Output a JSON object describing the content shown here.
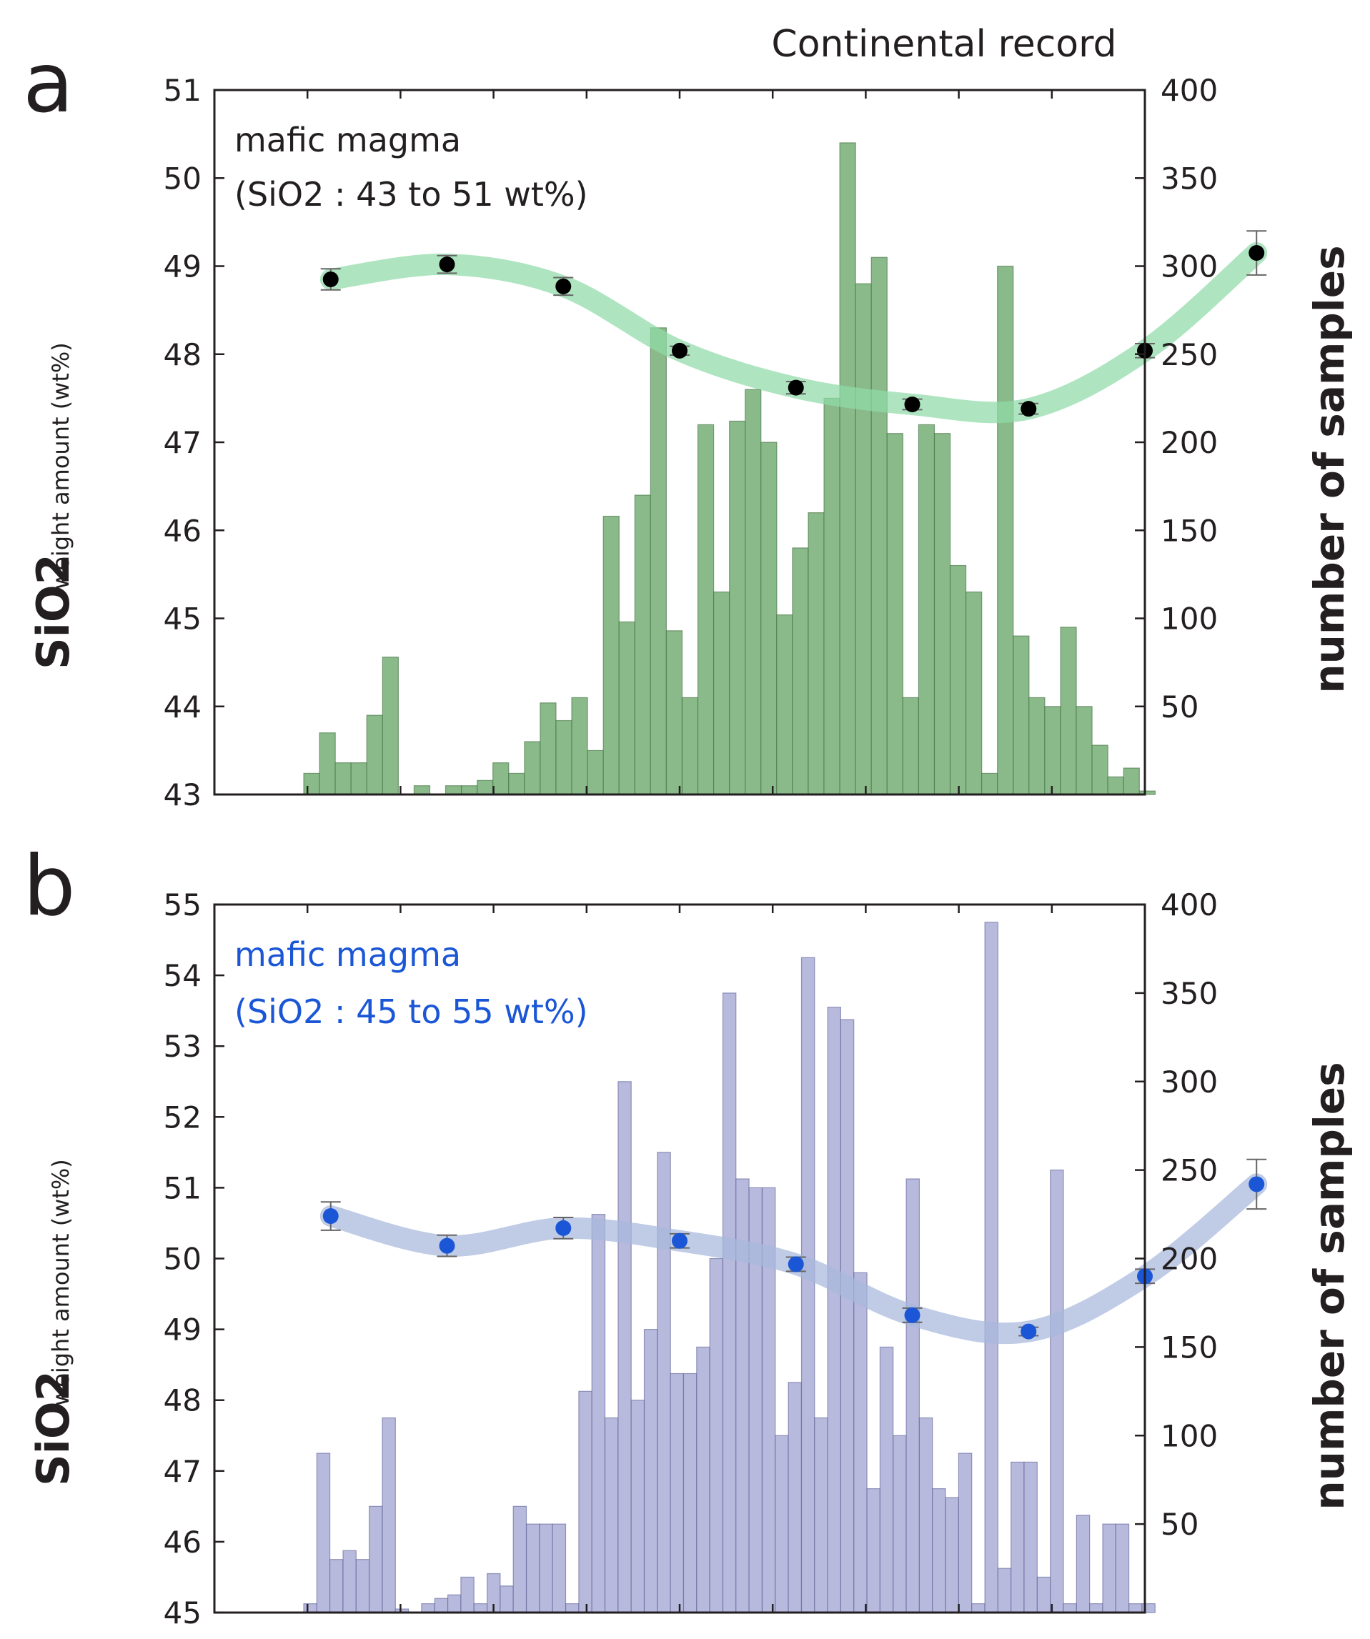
{
  "figure_title": "Continental record",
  "chart_data": [
    {
      "type": "bar",
      "panel_label": "a",
      "title": "mafic magma",
      "subtitle": "(SiO2 : 43 to 51 wt%)",
      "ylabel_main": "SiO2",
      "ylabel_sub": "weight amount (wt%)",
      "y2label": "number of samples",
      "ylim": [
        43,
        51
      ],
      "yticks": [
        "43",
        "44",
        "45",
        "46",
        "47",
        "48",
        "49",
        "50",
        "51"
      ],
      "y2lim": [
        0,
        400
      ],
      "y2ticks": [
        "50",
        "100",
        "150",
        "200",
        "250",
        "300",
        "350",
        "400"
      ],
      "xlim": [
        0,
        100
      ],
      "bar_color": "#8ab98a",
      "bar_edge_color": "#3d6e3d",
      "trend_color": "#8fdba8",
      "point_color": "#000000",
      "histogram_series": {
        "name": "number of samples",
        "values": [
          12,
          35,
          18,
          18,
          45,
          78,
          0,
          5,
          0,
          5,
          5,
          8,
          18,
          12,
          30,
          52,
          42,
          55,
          25,
          158,
          98,
          170,
          265,
          93,
          55,
          210,
          115,
          212,
          230,
          200,
          102,
          140,
          160,
          225,
          370,
          290,
          305,
          205,
          55,
          210,
          205,
          130,
          115,
          12,
          300,
          90,
          55,
          50,
          95,
          50,
          28,
          10,
          15,
          2
        ]
      },
      "trend_series": {
        "name": "mafic magma SiO2",
        "x": [
          12.5,
          25,
          37.5,
          50,
          62.5,
          75,
          87.5,
          100
        ],
        "values": [
          48.85,
          49.02,
          48.77,
          48.04,
          47.62,
          47.43,
          47.38,
          48.04
        ],
        "errors": [
          0.12,
          0.1,
          0.1,
          0.05,
          0.07,
          0.06,
          0.06,
          0.08
        ]
      },
      "extra_point": {
        "x": 112,
        "value": 49.15,
        "error": 0.25
      }
    },
    {
      "type": "bar",
      "panel_label": "b",
      "title": "mafic magma",
      "subtitle": "(SiO2 : 45 to 55 wt%)",
      "ylabel_main": "SiO2",
      "ylabel_sub": "weight amount (wt%)",
      "y2label": "number of samples",
      "ylim": [
        45,
        55
      ],
      "yticks": [
        "45",
        "46",
        "47",
        "48",
        "49",
        "50",
        "51",
        "52",
        "53",
        "54",
        "55"
      ],
      "y2lim": [
        0,
        400
      ],
      "y2ticks": [
        "50",
        "100",
        "150",
        "200",
        "250",
        "300",
        "350",
        "400"
      ],
      "xlim": [
        0,
        100
      ],
      "bar_color": "#b7b9dd",
      "bar_edge_color": "#5c5f94",
      "trend_color": "#a8b8dd",
      "point_color": "#1a56d6",
      "histogram_series": {
        "name": "number of samples",
        "values": [
          5,
          90,
          30,
          35,
          30,
          60,
          110,
          2,
          0,
          5,
          8,
          10,
          20,
          5,
          22,
          15,
          60,
          50,
          50,
          50,
          5,
          125,
          225,
          110,
          300,
          120,
          160,
          260,
          135,
          135,
          150,
          200,
          350,
          245,
          240,
          240,
          100,
          130,
          370,
          110,
          342,
          335,
          192,
          70,
          150,
          100,
          245,
          110,
          70,
          65,
          90,
          5,
          390,
          25,
          85,
          85,
          20,
          250,
          5,
          55,
          5,
          50,
          50,
          5,
          5
        ]
      },
      "trend_series": {
        "name": "mafic magma SiO2",
        "x": [
          12.5,
          25,
          37.5,
          50,
          62.5,
          75,
          87.5,
          100
        ],
        "values": [
          50.6,
          50.18,
          50.43,
          50.25,
          49.92,
          49.2,
          48.97,
          49.75
        ],
        "errors": [
          0.2,
          0.15,
          0.15,
          0.1,
          0.1,
          0.1,
          0.06,
          0.1
        ]
      },
      "extra_point": {
        "x": 112,
        "value": 51.05,
        "error": 0.35
      }
    }
  ]
}
